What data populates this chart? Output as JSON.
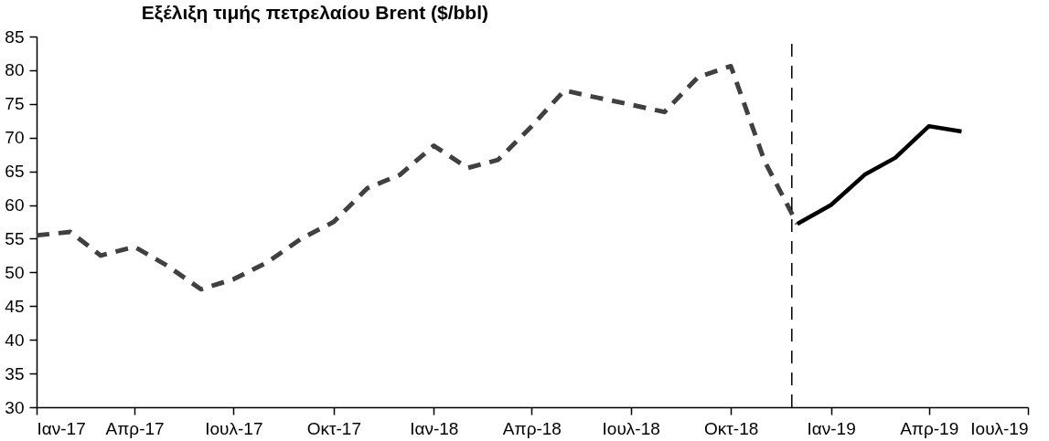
{
  "chart_data": {
    "type": "line",
    "title": "Εξέλιξη τιμής πετρελαίου Brent ($/bbl)",
    "series": [
      {
        "color": "#404040",
        "line_style": "dashed",
        "x": [
          "2017-01",
          "2017-02",
          "2017-03",
          "2017-04",
          "2017-05",
          "2017-06",
          "2017-07",
          "2017-08",
          "2017-09",
          "2017-10",
          "2017-11",
          "2017-12",
          "2018-01",
          "2018-02",
          "2018-03",
          "2018-04",
          "2018-05",
          "2018-06",
          "2018-07",
          "2018-08",
          "2018-09",
          "2018-10",
          "2018-11",
          "2018-12"
        ],
        "values": [
          55.5,
          56,
          52.5,
          53.8,
          51,
          47.5,
          49,
          51.5,
          55,
          57.5,
          62.5,
          64.5,
          68.8,
          65.5,
          66.7,
          71.7,
          77,
          75.9,
          74.9,
          73.8,
          79,
          80.6,
          66.5,
          57.2
        ]
      },
      {
        "color": "#000000",
        "line_style": "solid",
        "x": [
          "2018-12",
          "2019-01",
          "2019-02",
          "2019-03",
          "2019-04",
          "2019-05"
        ],
        "values": [
          57.2,
          60,
          64.5,
          67,
          71.7,
          70.9
        ]
      }
    ],
    "xlim": [
      "2017-01",
      "2019-07"
    ],
    "xticks": [
      {
        "value": "2017-01",
        "label": "Ιαν-17"
      },
      {
        "value": "2017-04",
        "label": "Απρ-17"
      },
      {
        "value": "2017-07",
        "label": "Ιουλ-17"
      },
      {
        "value": "2017-10",
        "label": "Οκτ-17"
      },
      {
        "value": "2018-01",
        "label": "Ιαν-18"
      },
      {
        "value": "2018-04",
        "label": "Απρ-18"
      },
      {
        "value": "2018-07",
        "label": "Ιουλ-18"
      },
      {
        "value": "2018-10",
        "label": "Οκτ-18"
      },
      {
        "value": "2019-01",
        "label": "Ιαν-19"
      },
      {
        "value": "2019-04",
        "label": "Απρ-19"
      },
      {
        "value": "2019-07",
        "label": "Ιουλ-19"
      }
    ],
    "ylim": [
      30,
      85
    ],
    "yticks": [
      30,
      35,
      40,
      45,
      50,
      55,
      60,
      65,
      70,
      75,
      80,
      85
    ],
    "ref_lines": [
      {
        "axis": "x",
        "value": "2018-11-26",
        "color": "#000000",
        "line_style": "dashed"
      }
    ],
    "grid": false,
    "legend": false,
    "marker": "none"
  }
}
